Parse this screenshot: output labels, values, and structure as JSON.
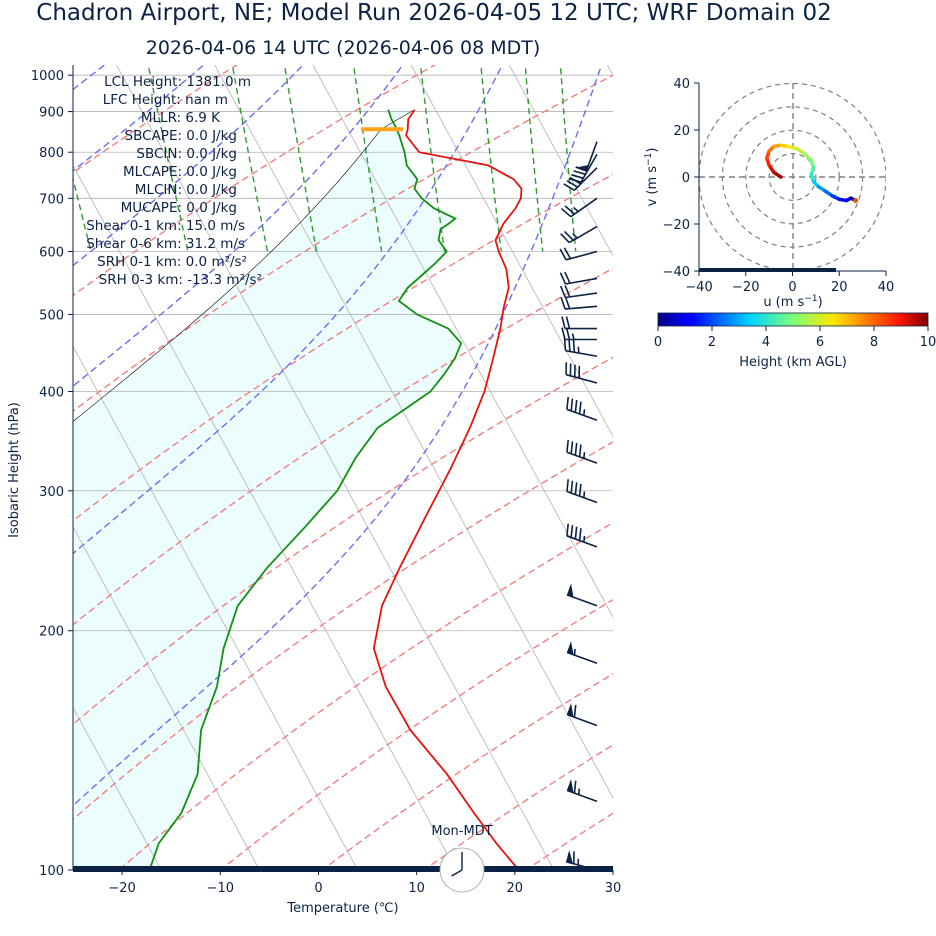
{
  "title": "Chadron Airport, NE; Model Run 2026-04-05 12 UTC; WRF Domain 02",
  "subtitle": "2026-04-06 14 UTC  (2026-04-06 08 MDT)",
  "colors": {
    "text": "#0b2244",
    "temperature": "#e3140f",
    "dewpoint": "#129012",
    "dry_adiabat": "#f07f7f",
    "moist_adiabat": "#6d6df0",
    "mixing_ratio": "#2f9a2f",
    "cape_fill": "#ecfdfd",
    "lcl_marker": "#ffa31a",
    "wind": "#0b2244"
  },
  "chart_data": [
    {
      "type": "line",
      "subtype": "skew-T log-P sounding",
      "xlabel": "Temperature (℃)",
      "ylabel": "Isobaric Height (hPa)",
      "xlim": [
        -25,
        30
      ],
      "ylim": [
        1030,
        100
      ],
      "x_ticks": [
        -20,
        -10,
        0,
        10,
        20,
        30
      ],
      "x_tick_labels": [
        "−20",
        "−10",
        "0",
        "10",
        "20",
        "30"
      ],
      "y_ticks": [
        100,
        200,
        300,
        400,
        500,
        600,
        700,
        800,
        900,
        1000
      ],
      "y_tick_labels": [
        "100",
        "200",
        "300",
        "400",
        "500",
        "600",
        "700",
        "800",
        "900",
        "1000"
      ],
      "skew_per_decade": 44,
      "grid": true,
      "series": [
        {
          "role": "temperature",
          "pressure": [
            905,
            880,
            855,
            840,
            800,
            770,
            740,
            720,
            700,
            680,
            650,
            620,
            600,
            570,
            540,
            510,
            480,
            440,
            400,
            360,
            320,
            280,
            240,
            215,
            190,
            170,
            150,
            132,
            118,
            108,
            100
          ],
          "temperature": [
            7.9,
            6.7,
            6.1,
            5.6,
            6.0,
            12.3,
            14.1,
            14.4,
            13.8,
            12.7,
            10.6,
            8.9,
            8.6,
            8.4,
            7.6,
            6.0,
            4.5,
            2.1,
            -0.6,
            -4.1,
            -8.3,
            -13.3,
            -19.0,
            -22.9,
            -26.1,
            -27.0,
            -26.9,
            -25.6,
            -25.0,
            -24.4,
            -23.6
          ]
        },
        {
          "role": "dewpoint",
          "pressure": [
            905,
            880,
            855,
            840,
            800,
            770,
            740,
            720,
            700,
            680,
            660,
            650,
            640,
            620,
            600,
            580,
            540,
            520,
            500,
            480,
            460,
            440,
            420,
            400,
            380,
            360,
            330,
            300,
            270,
            240,
            215,
            190,
            170,
            150,
            132,
            118,
            108,
            100
          ],
          "dewpoint": [
            5.2,
            5.0,
            5.0,
            4.9,
            4.5,
            4.0,
            4.3,
            3.5,
            3.7,
            4.4,
            6.0,
            5.0,
            3.9,
            3.1,
            3.3,
            1.5,
            -2.7,
            -4.3,
            -3.2,
            -0.8,
            -0.3,
            -1.8,
            -3.8,
            -6.1,
            -9.7,
            -13.5,
            -17.4,
            -21.1,
            -26.4,
            -32.5,
            -37.6,
            -41.4,
            -44.2,
            -48.2,
            -51.0,
            -54.8,
            -58.8,
            -61.2
          ]
        }
      ],
      "lcl_pressure": 855
    },
    {
      "type": "scatter",
      "subtype": "hodograph",
      "xlabel": "u (m s$^{-1}$)",
      "ylabel": "v (m s$^{-1}$)",
      "xlim": [
        -40,
        40
      ],
      "ylim": [
        -40,
        40
      ],
      "x_ticks": [
        -40,
        -20,
        0,
        20,
        40
      ],
      "x_tick_labels": [
        "−40",
        "−20",
        "0",
        "20",
        "40"
      ],
      "y_ticks": [
        -40,
        -20,
        0,
        20,
        40
      ],
      "y_tick_labels": [
        "−40",
        "−20",
        "0",
        "20",
        "40"
      ],
      "rings": [
        10,
        20,
        30,
        40
      ],
      "points": {
        "u": [
          -5,
          -8,
          -10,
          -11,
          -10,
          -8,
          -5,
          -2,
          2,
          5,
          8,
          9,
          8,
          9,
          11,
          14,
          17,
          20,
          23,
          25,
          27
        ],
        "v": [
          0,
          2,
          5,
          8,
          11,
          13,
          13.5,
          13,
          12,
          10,
          7,
          4,
          1,
          -2,
          -4,
          -6,
          -8,
          -9.5,
          -10,
          -9,
          -10
        ],
        "height_km": [
          9.7,
          9.3,
          8.8,
          8.4,
          7.9,
          7.3,
          6.8,
          6.3,
          5.8,
          5.3,
          4.9,
          4.4,
          3.9,
          3.3,
          2.8,
          2.2,
          1.7,
          1.2,
          0.7,
          0.3,
          0.1
        ]
      },
      "colorbar": {
        "label": "Height (km AGL)",
        "range": [
          0,
          10
        ],
        "ticks": [
          0,
          2,
          4,
          6,
          8,
          10
        ],
        "colormap": "jet"
      }
    }
  ],
  "winds": {
    "pressure": [
      100,
      122,
      152,
      182,
      215,
      255,
      290,
      325,
      368,
      410,
      443,
      465,
      480,
      512,
      532,
      555,
      600,
      645,
      700,
      765,
      795,
      825
    ],
    "speed_kt": [
      65,
      65,
      60,
      55,
      50,
      45,
      45,
      45,
      45,
      40,
      35,
      25,
      20,
      20,
      20,
      20,
      20,
      25,
      25,
      30,
      40,
      50
    ],
    "direction_deg": [
      285,
      290,
      290,
      290,
      290,
      290,
      290,
      290,
      290,
      285,
      280,
      270,
      270,
      265,
      262,
      260,
      255,
      240,
      235,
      225,
      210,
      200
    ]
  },
  "indices": {
    "lcl": "LCL Height: 1381.0 m",
    "lfc": "LFC Height: nan m",
    "mllr": "MLLR: 6.9 K",
    "sbcape": "SBCAPE: 0.0 J/kg",
    "sbcin": "SBCIN: 0.0 J/kg",
    "mlcape": "MLCAPE: 0.0 J/kg",
    "mlcin": "MLCIN: 0.0 J/kg",
    "mucape": "MUCAPE: 0.0 J/kg",
    "shear01": "Shear 0-1 km: 15.0 m/s",
    "shear06": "Shear 0-6 km: 31.2 m/s",
    "srh01": "SRH 0-1 km: 0.0 m²/s²",
    "srh03": "SRH 0-3 km: -13.3 m²/s²"
  },
  "clock": {
    "label": "Mon-MDT",
    "hour": 8,
    "minute": 0
  }
}
